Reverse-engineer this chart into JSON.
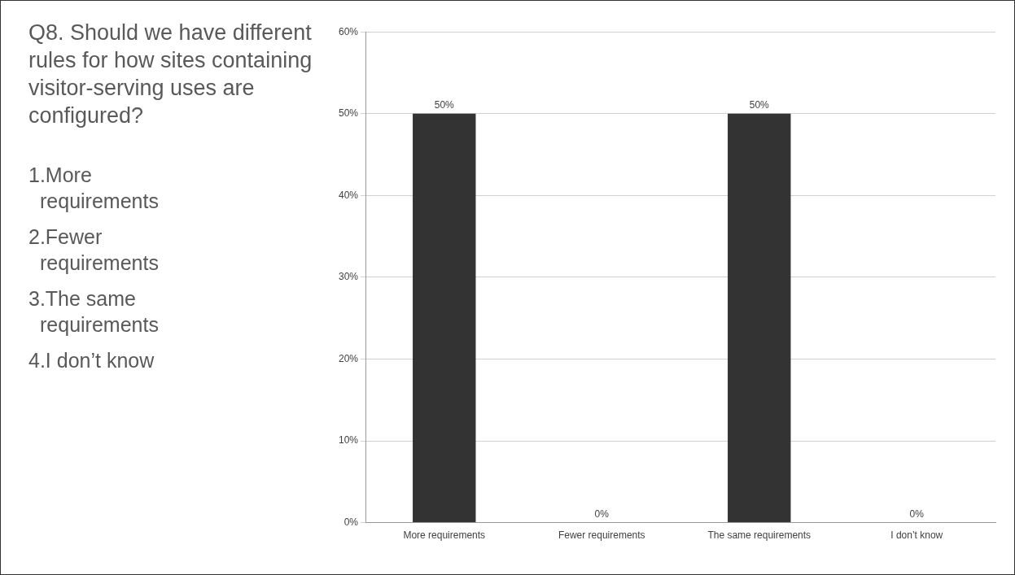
{
  "chart_data": {
    "type": "bar",
    "title": "Q8. Should we have different rules for how sites containing visitor-serving uses are configured?",
    "annotations": [
      "1.More requirements",
      "2.Fewer requirements",
      "3.The same requirements",
      "4.I don’t know"
    ],
    "categories": [
      "More requirements",
      "Fewer requirements",
      "The same requirements",
      "I don’t know"
    ],
    "values": [
      50,
      0,
      50,
      0
    ],
    "value_labels": [
      "50%",
      "0%",
      "50%",
      "0%"
    ],
    "color": "#333333",
    "ylim": [
      0,
      60
    ],
    "yticks": [
      {
        "value": 0,
        "label": "0%"
      },
      {
        "value": 10,
        "label": "10%"
      },
      {
        "value": 20,
        "label": "20%"
      },
      {
        "value": 30,
        "label": "30%"
      },
      {
        "value": 40,
        "label": "40%"
      },
      {
        "value": 50,
        "label": "50%"
      },
      {
        "value": 60,
        "label": "60%"
      }
    ],
    "grid": "y"
  }
}
